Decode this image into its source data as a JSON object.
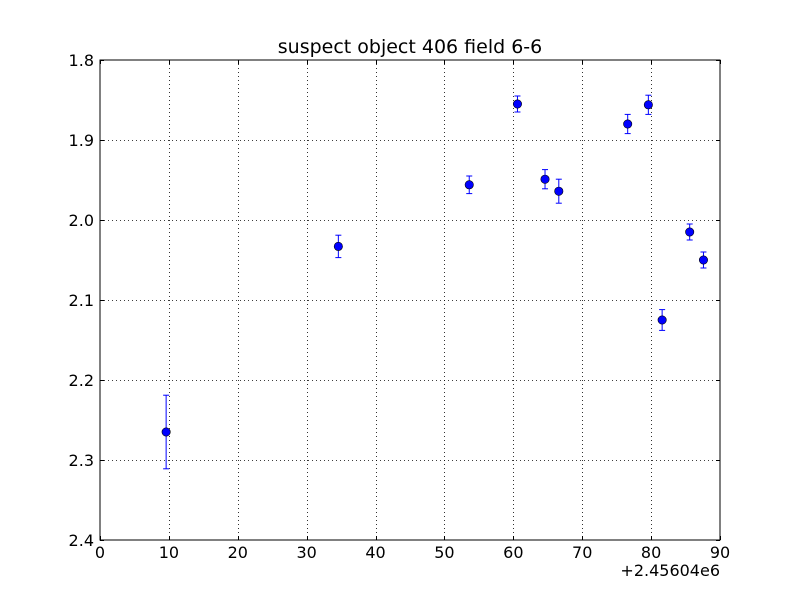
{
  "chart_data": {
    "type": "scatter",
    "title": "suspect object 406 field 6-6",
    "xlabel": "",
    "ylabel": "",
    "x_offset_label": "+2.45604e6",
    "xlim": [
      0,
      90
    ],
    "ylim": [
      2.4,
      1.8
    ],
    "y_inverted": true,
    "grid": true,
    "grid_style": "dotted",
    "x_ticks": [
      0,
      10,
      20,
      30,
      40,
      50,
      60,
      70,
      80,
      90
    ],
    "x_tick_labels": [
      "0",
      "10",
      "20",
      "30",
      "40",
      "50",
      "60",
      "70",
      "80",
      "90"
    ],
    "y_ticks": [
      1.8,
      1.9,
      2.0,
      2.1,
      2.2,
      2.3,
      2.4
    ],
    "y_tick_labels": [
      "1.8",
      "1.9",
      "2.0",
      "2.1",
      "2.2",
      "2.3",
      "2.4"
    ],
    "marker_color": "#0000ff",
    "series": [
      {
        "points": [
          {
            "x": 9.6,
            "y": 2.265,
            "err": 0.046
          },
          {
            "x": 34.6,
            "y": 2.033,
            "err": 0.014
          },
          {
            "x": 53.6,
            "y": 1.956,
            "err": 0.011
          },
          {
            "x": 60.6,
            "y": 1.855,
            "err": 0.01
          },
          {
            "x": 64.6,
            "y": 1.949,
            "err": 0.012
          },
          {
            "x": 66.6,
            "y": 1.964,
            "err": 0.015
          },
          {
            "x": 76.6,
            "y": 1.88,
            "err": 0.012
          },
          {
            "x": 79.6,
            "y": 1.856,
            "err": 0.012
          },
          {
            "x": 81.6,
            "y": 2.125,
            "err": 0.013
          },
          {
            "x": 85.6,
            "y": 2.015,
            "err": 0.01
          },
          {
            "x": 87.6,
            "y": 2.05,
            "err": 0.01
          }
        ]
      }
    ]
  }
}
